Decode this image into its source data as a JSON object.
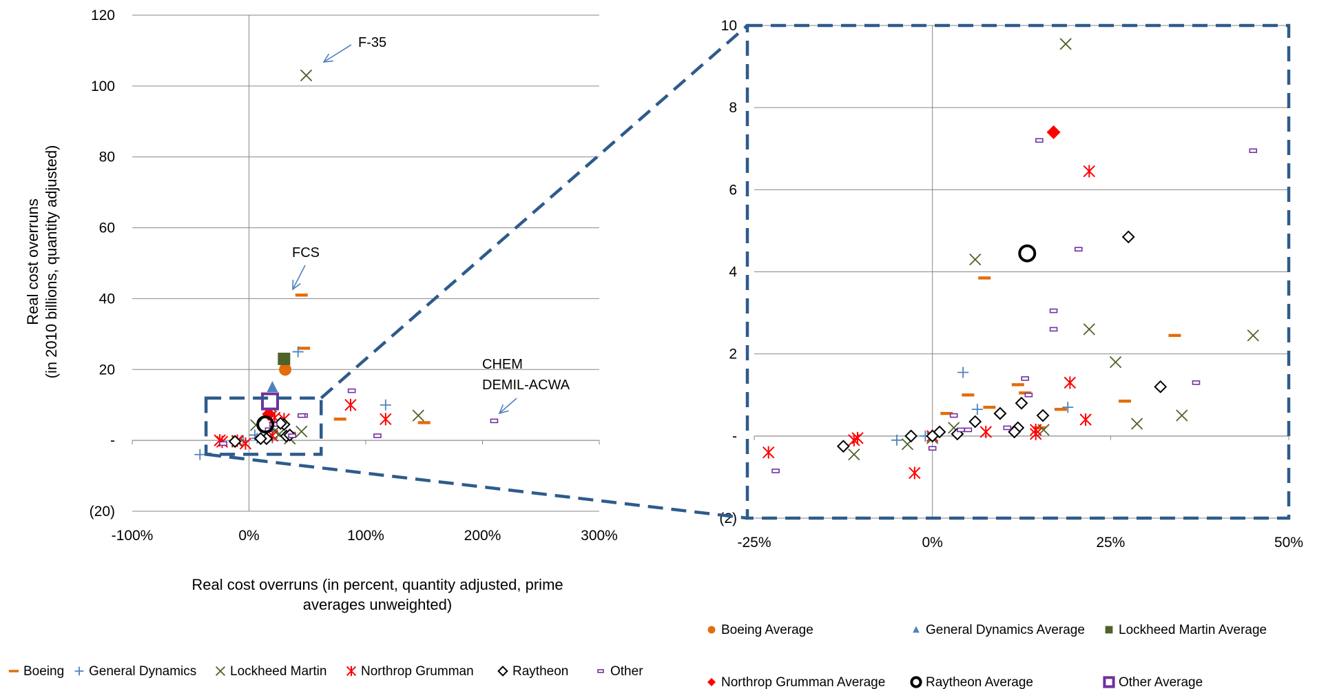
{
  "chart_data": [
    {
      "type": "scatter",
      "panel": "main",
      "xlabel": "Real cost overruns (in percent, quantity adjusted, prime averages unweighted)",
      "ylabel": "Real cost overruns (in 2010 billions, quantity adjusted)",
      "xlim": [
        -1.0,
        3.0
      ],
      "ylim": [
        -20,
        120
      ],
      "xticks": [
        -1,
        0,
        1,
        2,
        3
      ],
      "xtick_labels": [
        "-100%",
        "0%",
        "100%",
        "200%",
        "300%"
      ],
      "yticks": [
        -20,
        0,
        20,
        40,
        60,
        80,
        100,
        120
      ],
      "ytick_labels": [
        "(20)",
        "-",
        "20",
        "40",
        "60",
        "80",
        "100",
        "120"
      ],
      "grid": "horizontal",
      "legend": "bottom",
      "annotations": [
        {
          "text": "F-35",
          "x": 0.49,
          "y": 103
        },
        {
          "text": "FCS",
          "x": 0.43,
          "y": 41
        },
        {
          "text": "CHEM",
          "x": 2.14,
          "y": 5
        },
        {
          "text": "DEMIL-ACWA",
          "x": 2.14,
          "y": 5
        }
      ],
      "series": [
        {
          "name": "Boeing",
          "marker": "dash",
          "color": "#E46C0A",
          "points": [
            [
              0.45,
              41
            ],
            [
              0.47,
              26
            ],
            [
              0.78,
              6
            ],
            [
              1.5,
              5
            ],
            [
              0.35,
              2
            ],
            [
              0.15,
              1
            ],
            [
              0.1,
              0.9
            ]
          ]
        },
        {
          "name": "General Dynamics",
          "marker": "plus",
          "color": "#4F81BD",
          "points": [
            [
              -0.42,
              -4
            ],
            [
              1.17,
              10
            ],
            [
              0.42,
              25
            ],
            [
              0.05,
              1.5
            ],
            [
              0.2,
              0.7
            ],
            [
              -0.05,
              -0.1
            ],
            [
              0.07,
              0.6
            ]
          ]
        },
        {
          "name": "Lockheed Martin",
          "marker": "x",
          "color": "#4F6228",
          "points": [
            [
              0.49,
              103
            ],
            [
              1.45,
              7
            ],
            [
              0.45,
              2.5
            ],
            [
              0.19,
              9.5
            ],
            [
              0.26,
              1.8
            ],
            [
              0.22,
              2.6
            ],
            [
              0.06,
              4.3
            ],
            [
              0.35,
              0.5
            ],
            [
              -0.1,
              -0.4
            ]
          ]
        },
        {
          "name": "Northrop Grumman",
          "marker": "asterisk",
          "color": "#FF0000",
          "points": [
            [
              0.87,
              10
            ],
            [
              1.17,
              6
            ],
            [
              0.3,
              6
            ],
            [
              0.22,
              6.4
            ],
            [
              -0.23,
              -0.4
            ],
            [
              -0.25,
              0
            ],
            [
              -0.1,
              -0.1
            ],
            [
              -0.03,
              -0.9
            ],
            [
              0.2,
              1.3
            ]
          ]
        },
        {
          "name": "Raytheon",
          "marker": "diamond",
          "color": "#000000",
          "points": [
            [
              0.3,
              4.5
            ],
            [
              0.32,
              1.2
            ],
            [
              0.27,
              4.8
            ],
            [
              -0.12,
              -0.3
            ],
            [
              0.15,
              0.5
            ],
            [
              0.1,
              0.5
            ],
            [
              0.35,
              1.5
            ]
          ]
        },
        {
          "name": "Other",
          "marker": "small-rect",
          "color": "#7030A0",
          "points": [
            [
              0.88,
              14
            ],
            [
              0.47,
              7
            ],
            [
              2.1,
              5.5
            ],
            [
              1.1,
              1.3
            ],
            [
              0.45,
              7
            ],
            [
              0.17,
              3
            ],
            [
              0.21,
              4.5
            ],
            [
              0.37,
              1.3
            ],
            [
              -0.22,
              -0.9
            ]
          ]
        }
      ],
      "averages": [
        {
          "name": "Boeing Average",
          "marker": "circle-filled",
          "color": "#E46C0A",
          "x": 0.31,
          "y": 20
        },
        {
          "name": "General Dynamics Average",
          "marker": "triangle",
          "color": "#4F81BD",
          "x": 0.2,
          "y": 15
        },
        {
          "name": "Lockheed Martin Average",
          "marker": "square-filled",
          "color": "#4F6228",
          "x": 0.3,
          "y": 23
        },
        {
          "name": "Northrop Grumman Average",
          "marker": "diamond-filled",
          "color": "#FF0000",
          "x": 0.17,
          "y": 7.4
        },
        {
          "name": "Raytheon Average",
          "marker": "circle-open-bold",
          "color": "#000000",
          "x": 0.14,
          "y": 4.5
        },
        {
          "name": "Other Average",
          "marker": "square-open-bold",
          "color": "#7030A0",
          "x": 0.18,
          "y": 11
        }
      ]
    },
    {
      "type": "scatter",
      "panel": "zoom",
      "xlim": [
        -0.25,
        0.5
      ],
      "ylim": [
        -2,
        10
      ],
      "xticks": [
        -0.25,
        0,
        0.25,
        0.5
      ],
      "xtick_labels": [
        "-25%",
        "0%",
        "25%",
        "50%"
      ],
      "yticks": [
        -2,
        0,
        2,
        4,
        6,
        8,
        10
      ],
      "ytick_labels": [
        "(2)",
        "-",
        "2",
        "4",
        "6",
        "8",
        "10"
      ],
      "grid": "horizontal",
      "legend": "bottom-right",
      "series": [
        {
          "name": "Boeing",
          "marker": "dash",
          "color": "#E46C0A",
          "points": [
            [
              0.073,
              3.85
            ],
            [
              0.34,
              2.45
            ],
            [
              0.05,
              1.0
            ],
            [
              0.12,
              1.25
            ],
            [
              0.13,
              1.05
            ],
            [
              0.27,
              0.85
            ],
            [
              0.18,
              0.65
            ],
            [
              0.08,
              0.7
            ],
            [
              0.02,
              0.55
            ],
            [
              0.15,
              0.2
            ]
          ]
        },
        {
          "name": "General Dynamics",
          "marker": "plus",
          "color": "#4F81BD",
          "points": [
            [
              0.043,
              1.55
            ],
            [
              0.063,
              0.65
            ],
            [
              0.19,
              0.7
            ],
            [
              -0.05,
              -0.1
            ],
            [
              0.0,
              0.0
            ],
            [
              -0.01,
              0.0
            ]
          ]
        },
        {
          "name": "Lockheed Martin",
          "marker": "x",
          "color": "#4F6228",
          "points": [
            [
              0.187,
              9.55
            ],
            [
              0.06,
              4.3
            ],
            [
              0.22,
              2.6
            ],
            [
              0.257,
              1.8
            ],
            [
              0.45,
              2.45
            ],
            [
              0.35,
              0.5
            ],
            [
              0.287,
              0.3
            ],
            [
              -0.11,
              -0.45
            ],
            [
              -0.035,
              -0.2
            ],
            [
              0.156,
              0.15
            ],
            [
              0.03,
              0.2
            ],
            [
              0.0,
              -0.05
            ]
          ]
        },
        {
          "name": "Northrop Grumman",
          "marker": "asterisk",
          "color": "#FF0000",
          "points": [
            [
              0.22,
              6.45
            ],
            [
              0.193,
              1.3
            ],
            [
              0.215,
              0.4
            ],
            [
              -0.23,
              -0.4
            ],
            [
              -0.11,
              -0.1
            ],
            [
              -0.105,
              -0.05
            ],
            [
              -0.025,
              -0.9
            ],
            [
              0.075,
              0.1
            ],
            [
              0.145,
              0.15
            ],
            [
              0.145,
              0.05
            ],
            [
              0.0,
              0.0
            ]
          ]
        },
        {
          "name": "Raytheon",
          "marker": "diamond",
          "color": "#000000",
          "points": [
            [
              0.275,
              4.85
            ],
            [
              0.32,
              1.2
            ],
            [
              -0.125,
              -0.25
            ],
            [
              0.06,
              0.35
            ],
            [
              0.095,
              0.55
            ],
            [
              0.125,
              0.8
            ],
            [
              0.155,
              0.5
            ],
            [
              0.12,
              0.2
            ],
            [
              0.115,
              0.1
            ],
            [
              0.035,
              0.05
            ],
            [
              -0.03,
              0.0
            ],
            [
              0.01,
              0.1
            ],
            [
              0.0,
              0.0
            ]
          ]
        },
        {
          "name": "Other",
          "marker": "small-rect",
          "color": "#7030A0",
          "points": [
            [
              0.15,
              7.2
            ],
            [
              0.45,
              6.95
            ],
            [
              0.205,
              4.55
            ],
            [
              0.17,
              3.05
            ],
            [
              0.17,
              2.6
            ],
            [
              0.37,
              1.3
            ],
            [
              0.13,
              1.4
            ],
            [
              0.135,
              1.0
            ],
            [
              -0.22,
              -0.85
            ],
            [
              0.03,
              0.5
            ],
            [
              0.04,
              0.15
            ],
            [
              0.05,
              0.15
            ],
            [
              0.0,
              -0.3
            ],
            [
              0.105,
              0.2
            ]
          ]
        }
      ],
      "averages": [
        {
          "name": "Northrop Grumman Average",
          "marker": "diamond-filled",
          "color": "#FF0000",
          "x": 0.17,
          "y": 7.4
        },
        {
          "name": "Raytheon Average",
          "marker": "circle-open-bold",
          "color": "#000000",
          "x": 0.133,
          "y": 4.45
        },
        {
          "name": "Raytheon Average",
          "marker": "diamond",
          "color": "#000000",
          "x": 0.095,
          "y": 0.55
        }
      ]
    }
  ],
  "legend_main": [
    {
      "label": "Boeing",
      "marker": "dash",
      "color": "#E46C0A"
    },
    {
      "label": "General Dynamics",
      "marker": "plus",
      "color": "#4F81BD"
    },
    {
      "label": "Lockheed Martin",
      "marker": "x",
      "color": "#4F6228"
    },
    {
      "label": "Northrop Grumman",
      "marker": "asterisk",
      "color": "#FF0000"
    },
    {
      "label": "Raytheon",
      "marker": "diamond",
      "color": "#000000"
    },
    {
      "label": "Other",
      "marker": "small-rect",
      "color": "#7030A0"
    }
  ],
  "legend_avg": [
    {
      "label": "Boeing Average",
      "marker": "circle-filled",
      "color": "#E46C0A"
    },
    {
      "label": "General Dynamics Average",
      "marker": "triangle",
      "color": "#4F81BD"
    },
    {
      "label": "Lockheed Martin Average",
      "marker": "square-filled",
      "color": "#4F6228"
    },
    {
      "label": "Northrop Grumman Average",
      "marker": "diamond-filled",
      "color": "#FF0000"
    },
    {
      "label": "Raytheon Average",
      "marker": "circle-open-bold",
      "color": "#000000"
    },
    {
      "label": "Other Average",
      "marker": "square-open-bold",
      "color": "#7030A0"
    }
  ],
  "colors": {
    "zoom_callout": "#2E5B8C",
    "annotation_arrow": "#4F81BD",
    "gridline": "#868686"
  }
}
